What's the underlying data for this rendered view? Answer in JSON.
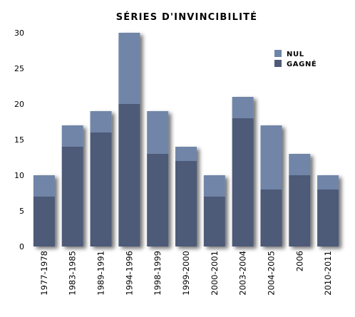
{
  "chart_data": {
    "type": "bar",
    "stacked": true,
    "title": "SÉRIES D'INVINCIBILITÉ",
    "categories": [
      "1977-1978",
      "1983-1985",
      "1989-1991",
      "1994-1996",
      "1998-1999",
      "1999-2000",
      "2000-2001",
      "2003-2004",
      "2004-2005",
      "2006",
      "2010-2011"
    ],
    "series": [
      {
        "name": "GAGNÉ",
        "color": "#4e5a78",
        "values": [
          7,
          14,
          16,
          20,
          13,
          12,
          7,
          18,
          8,
          10,
          8
        ]
      },
      {
        "name": "NUL",
        "color": "#6f85a8",
        "values": [
          3,
          3,
          3,
          10,
          6,
          2,
          3,
          3,
          9,
          3,
          2
        ]
      }
    ],
    "ylim": [
      0,
      30
    ],
    "yticks": [
      0,
      5,
      10,
      15,
      20,
      25,
      30
    ],
    "legend_position": "top-right",
    "legend_order": [
      "NUL",
      "GAGNÉ"
    ],
    "grid": false
  }
}
